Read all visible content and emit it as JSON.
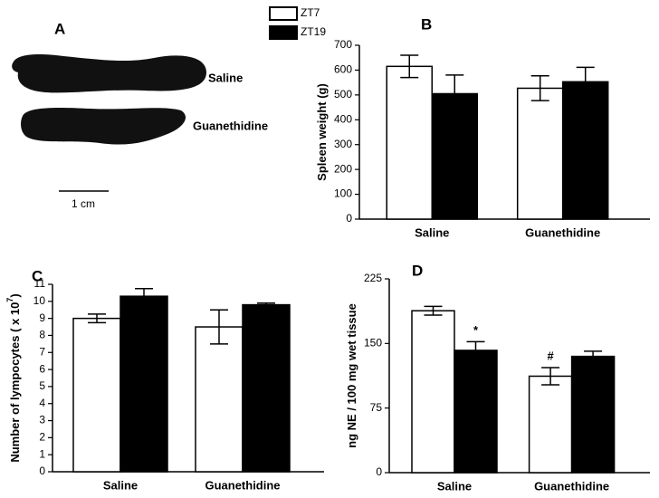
{
  "legend": [
    "ZT7",
    "ZT19"
  ],
  "panel_a": {
    "panel_label": "A",
    "labels": [
      "Saline",
      "Guanethidine"
    ],
    "scale": "1 cm"
  },
  "chart_data": [
    {
      "type": "bar",
      "panel_label": "B",
      "y_label": "Spleen weight (g)",
      "categories": [
        "Saline",
        "Guanethidine"
      ],
      "series": [
        {
          "name": "ZT7",
          "color": "#ffffff",
          "values": [
            615,
            527
          ],
          "errors": [
            45,
            50
          ]
        },
        {
          "name": "ZT19",
          "color": "#000000",
          "values": [
            505,
            553
          ],
          "errors": [
            75,
            58
          ]
        }
      ],
      "ylim": [
        0,
        700
      ],
      "yticks": [
        0,
        100,
        200,
        300,
        400,
        500,
        600,
        700
      ]
    },
    {
      "type": "bar",
      "panel_label": "C",
      "y_label": "Number of lympocytes ( x 10",
      "y_label_sup": "7",
      "y_label_end": ")",
      "categories": [
        "Saline",
        "Guanethidine"
      ],
      "series": [
        {
          "name": "ZT7",
          "color": "#ffffff",
          "values": [
            9.0,
            8.5
          ],
          "errors": [
            0.25,
            1.0
          ]
        },
        {
          "name": "ZT19",
          "color": "#000000",
          "values": [
            10.3,
            9.8
          ],
          "errors": [
            0.45,
            0.1
          ]
        }
      ],
      "ylim": [
        0,
        11
      ],
      "yticks": [
        0,
        1,
        2,
        3,
        4,
        5,
        6,
        7,
        8,
        9,
        10,
        11
      ]
    },
    {
      "type": "bar",
      "panel_label": "D",
      "y_label": "ng NE / 100 mg wet tissue",
      "categories": [
        "Saline",
        "Guanethidine"
      ],
      "series": [
        {
          "name": "ZT7",
          "color": "#ffffff",
          "values": [
            188,
            112
          ],
          "errors": [
            5,
            10
          ]
        },
        {
          "name": "ZT19",
          "color": "#000000",
          "values": [
            142,
            135
          ],
          "errors": [
            10,
            6
          ]
        }
      ],
      "annotations": [
        {
          "text": "*",
          "category": "Saline",
          "series": "ZT19"
        },
        {
          "text": "#",
          "category": "Guanethidine",
          "series": "ZT7"
        }
      ],
      "ylim": [
        0,
        225
      ],
      "yticks": [
        0,
        75,
        150,
        225
      ]
    }
  ]
}
